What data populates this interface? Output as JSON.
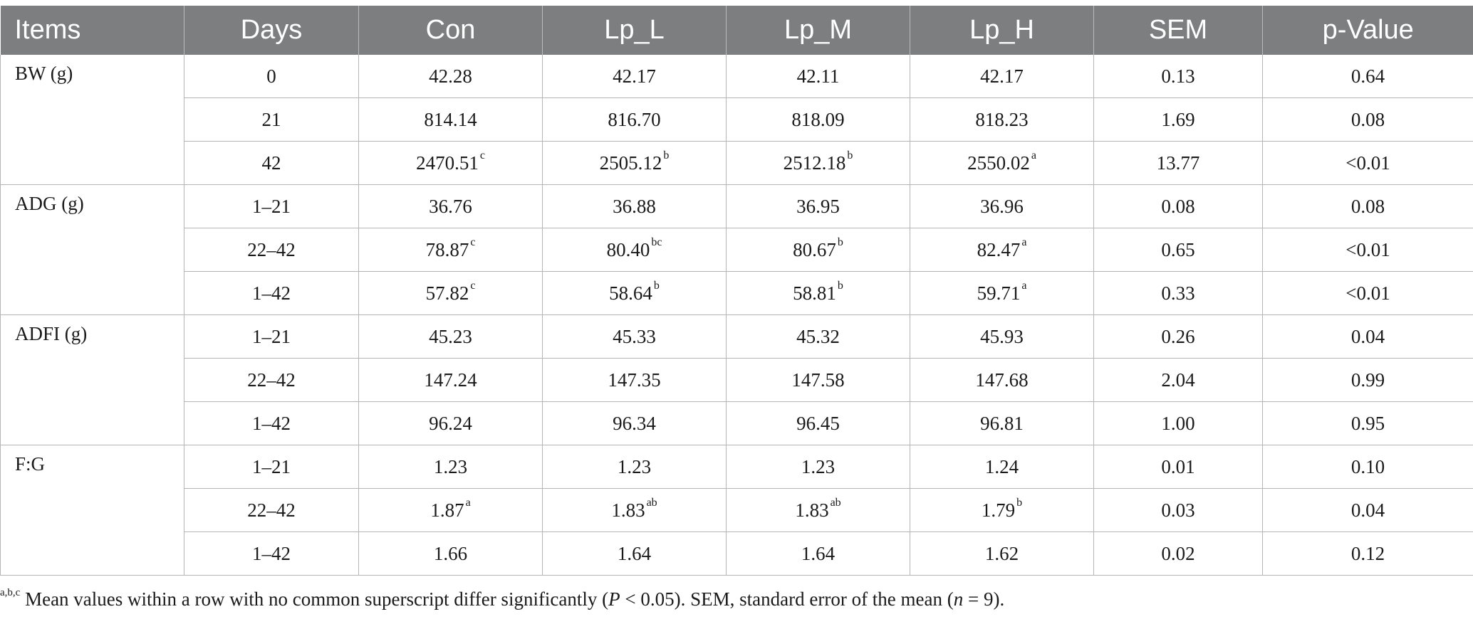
{
  "table": {
    "headers": [
      "Items",
      "Days",
      "Con",
      "Lp_L",
      "Lp_M",
      "Lp_H",
      "SEM",
      "p-Value"
    ],
    "groups": [
      {
        "item": "BW (g)",
        "rows": [
          {
            "days": "0",
            "con": "42.28",
            "con_sup": "",
            "lp_l": "42.17",
            "lp_l_sup": "",
            "lp_m": "42.11",
            "lp_m_sup": "",
            "lp_h": "42.17",
            "lp_h_sup": "",
            "sem": "0.13",
            "p": "0.64"
          },
          {
            "days": "21",
            "con": "814.14",
            "con_sup": "",
            "lp_l": "816.70",
            "lp_l_sup": "",
            "lp_m": "818.09",
            "lp_m_sup": "",
            "lp_h": "818.23",
            "lp_h_sup": "",
            "sem": "1.69",
            "p": "0.08"
          },
          {
            "days": "42",
            "con": "2470.51",
            "con_sup": "c",
            "lp_l": "2505.12",
            "lp_l_sup": "b",
            "lp_m": "2512.18",
            "lp_m_sup": "b",
            "lp_h": "2550.02",
            "lp_h_sup": "a",
            "sem": "13.77",
            "p": "<0.01"
          }
        ]
      },
      {
        "item": "ADG (g)",
        "rows": [
          {
            "days": "1–21",
            "con": "36.76",
            "con_sup": "",
            "lp_l": "36.88",
            "lp_l_sup": "",
            "lp_m": "36.95",
            "lp_m_sup": "",
            "lp_h": "36.96",
            "lp_h_sup": "",
            "sem": "0.08",
            "p": "0.08"
          },
          {
            "days": "22–42",
            "con": "78.87",
            "con_sup": "c",
            "lp_l": "80.40",
            "lp_l_sup": "bc",
            "lp_m": "80.67",
            "lp_m_sup": "b",
            "lp_h": "82.47",
            "lp_h_sup": "a",
            "sem": "0.65",
            "p": "<0.01"
          },
          {
            "days": "1–42",
            "con": "57.82",
            "con_sup": "c",
            "lp_l": "58.64",
            "lp_l_sup": "b",
            "lp_m": "58.81",
            "lp_m_sup": "b",
            "lp_h": "59.71",
            "lp_h_sup": "a",
            "sem": "0.33",
            "p": "<0.01"
          }
        ]
      },
      {
        "item": "ADFI (g)",
        "rows": [
          {
            "days": "1–21",
            "con": "45.23",
            "con_sup": "",
            "lp_l": "45.33",
            "lp_l_sup": "",
            "lp_m": "45.32",
            "lp_m_sup": "",
            "lp_h": "45.93",
            "lp_h_sup": "",
            "sem": "0.26",
            "p": "0.04"
          },
          {
            "days": "22–42",
            "con": "147.24",
            "con_sup": "",
            "lp_l": "147.35",
            "lp_l_sup": "",
            "lp_m": "147.58",
            "lp_m_sup": "",
            "lp_h": "147.68",
            "lp_h_sup": "",
            "sem": "2.04",
            "p": "0.99"
          },
          {
            "days": "1–42",
            "con": "96.24",
            "con_sup": "",
            "lp_l": "96.34",
            "lp_l_sup": "",
            "lp_m": "96.45",
            "lp_m_sup": "",
            "lp_h": "96.81",
            "lp_h_sup": "",
            "sem": "1.00",
            "p": "0.95"
          }
        ]
      },
      {
        "item": "F:G",
        "rows": [
          {
            "days": "1–21",
            "con": "1.23",
            "con_sup": "",
            "lp_l": "1.23",
            "lp_l_sup": "",
            "lp_m": "1.23",
            "lp_m_sup": "",
            "lp_h": "1.24",
            "lp_h_sup": "",
            "sem": "0.01",
            "p": "0.10"
          },
          {
            "days": "22–42",
            "con": "1.87",
            "con_sup": "a",
            "lp_l": "1.83",
            "lp_l_sup": "ab",
            "lp_m": "1.83",
            "lp_m_sup": "ab",
            "lp_h": "1.79",
            "lp_h_sup": "b",
            "sem": "0.03",
            "p": "0.04"
          },
          {
            "days": "1–42",
            "con": "1.66",
            "con_sup": "",
            "lp_l": "1.64",
            "lp_l_sup": "",
            "lp_m": "1.64",
            "lp_m_sup": "",
            "lp_h": "1.62",
            "lp_h_sup": "",
            "sem": "0.02",
            "p": "0.12"
          }
        ]
      }
    ]
  },
  "footnote": {
    "marks": "a,b,c",
    "text_1": " Mean values within a row with no common superscript differ significantly (",
    "p_symbol": "P",
    "text_2": " < 0.05). SEM, standard error of the mean (",
    "n_symbol": "n",
    "text_3": " = 9)."
  }
}
